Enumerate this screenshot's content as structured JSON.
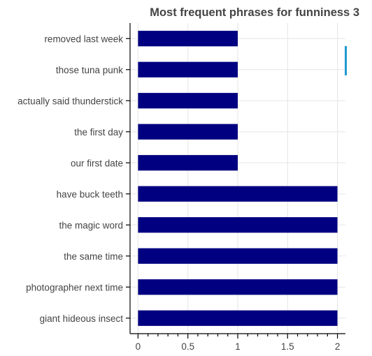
{
  "chart_data": {
    "type": "bar",
    "orientation": "horizontal",
    "title": "Most frequent phrases for funniness 3",
    "xlabel": "",
    "ylabel": "",
    "categories": [
      "removed last week",
      "those tuna punk",
      "actually said thunderstick",
      "the first day",
      "our first date",
      "have buck teeth",
      "the magic word",
      "the same time",
      "photographer next time",
      "giant hideous insect"
    ],
    "values": [
      1,
      1,
      1,
      1,
      1,
      2,
      2,
      2,
      2,
      2
    ],
    "xlim": [
      -0.08,
      2.08
    ],
    "x_ticks": [
      0,
      0.5,
      1,
      1.5,
      2
    ],
    "x_tick_labels": [
      "0",
      "0.5",
      "1",
      "1.5",
      "2"
    ],
    "bar_color": "#000080",
    "toolbar_accent_color": "#1f9bd0",
    "grid": true,
    "legend": "none"
  }
}
